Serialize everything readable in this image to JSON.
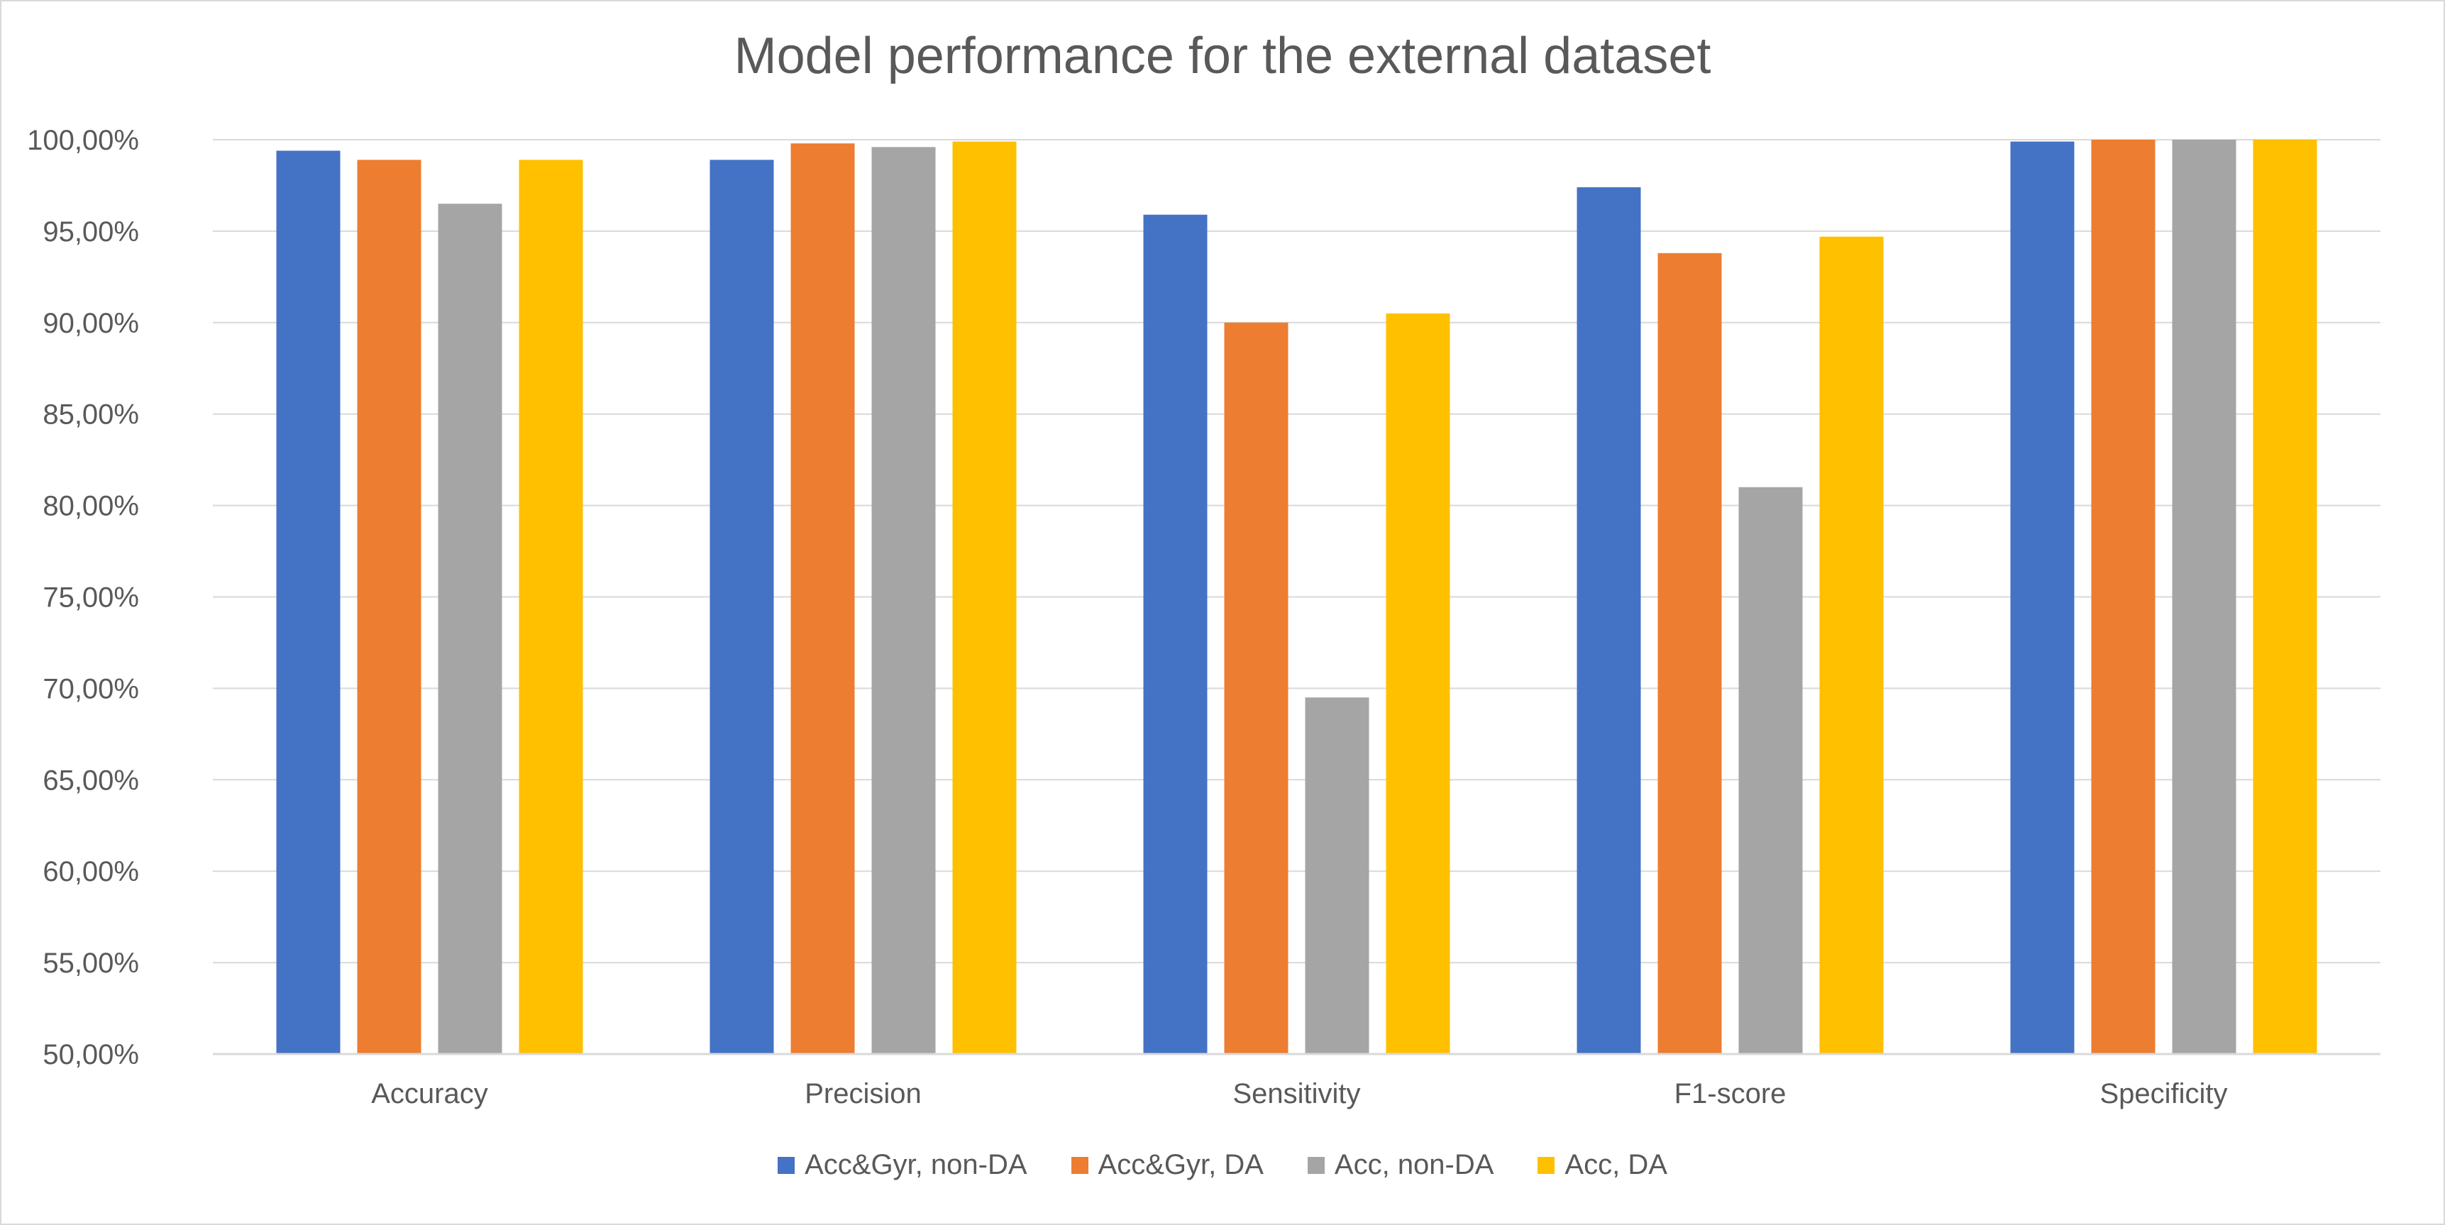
{
  "chart_data": {
    "type": "bar",
    "title": "Model performance for the external dataset",
    "xlabel": "",
    "ylabel": "",
    "categories": [
      "Accuracy",
      "Precision",
      "Sensitivity",
      "F1-score",
      "Specificity"
    ],
    "series": [
      {
        "name": "Acc&Gyr, non-DA",
        "color": "#4472c4",
        "values": [
          99.4,
          98.9,
          95.9,
          97.4,
          99.9
        ]
      },
      {
        "name": "Acc&Gyr, DA",
        "color": "#ed7d31",
        "values": [
          98.9,
          99.8,
          90.0,
          93.8,
          100.0
        ]
      },
      {
        "name": "Acc, non-DA",
        "color": "#a5a5a5",
        "values": [
          96.5,
          99.6,
          69.5,
          81.0,
          100.0
        ]
      },
      {
        "name": "Acc, DA",
        "color": "#ffc000",
        "values": [
          98.9,
          99.9,
          90.5,
          94.7,
          100.0
        ]
      }
    ],
    "ylim": [
      50,
      100
    ],
    "yticks": [
      {
        "value": 50,
        "label": "50,00%"
      },
      {
        "value": 55,
        "label": "55,00%"
      },
      {
        "value": 60,
        "label": "60,00%"
      },
      {
        "value": 65,
        "label": "65,00%"
      },
      {
        "value": 70,
        "label": "70,00%"
      },
      {
        "value": 75,
        "label": "75,00%"
      },
      {
        "value": 80,
        "label": "80,00%"
      },
      {
        "value": 85,
        "label": "85,00%"
      },
      {
        "value": 90,
        "label": "90,00%"
      },
      {
        "value": 95,
        "label": "95,00%"
      },
      {
        "value": 100,
        "label": "100,00%"
      }
    ],
    "grid": true,
    "legend_position": "bottom"
  }
}
